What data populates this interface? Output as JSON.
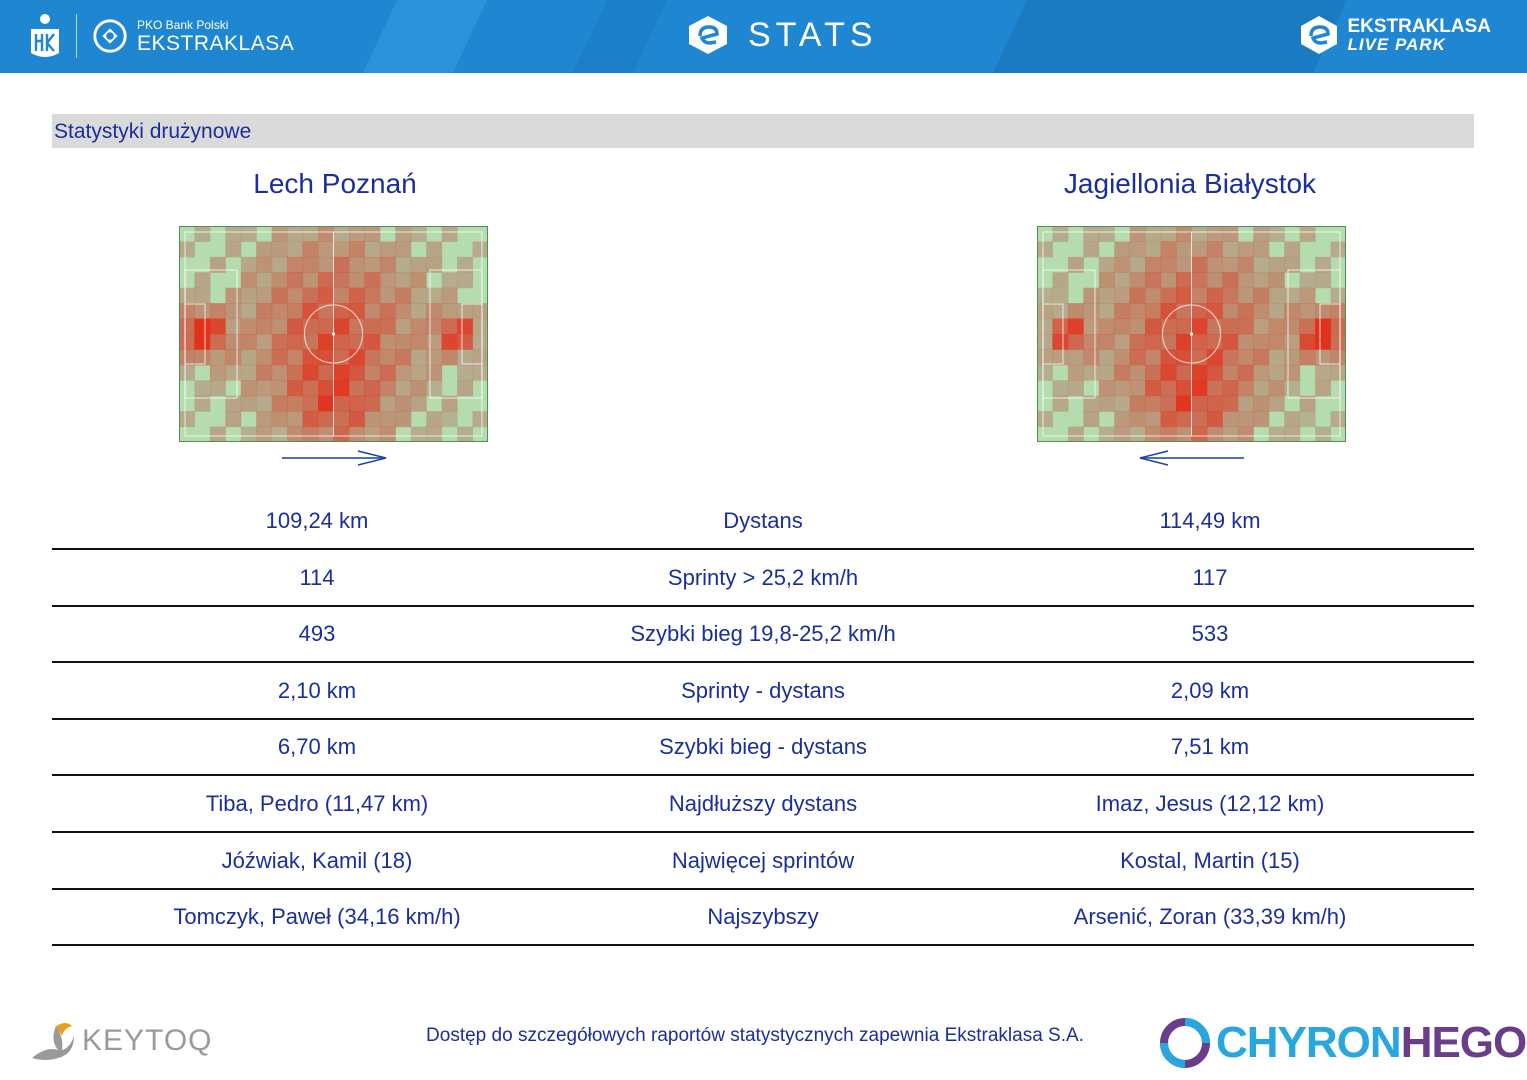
{
  "header": {
    "bank_small": "PKO Bank Polski",
    "bank_big": "EKSTRAKLASA",
    "title": "STATS",
    "right_line1": "EKSTRAKLASA",
    "right_line2": "LIVE PARK",
    "header_color": "#1f86d1"
  },
  "section": {
    "title": "Statystyki drużynowe"
  },
  "teams": {
    "home": {
      "name": "Lech Poznań",
      "attack_direction": "right"
    },
    "away": {
      "name": "Jagiellonia Białystok",
      "attack_direction": "left"
    }
  },
  "stats": [
    {
      "label": "Dystans",
      "home": "109,24 km",
      "away": "114,49 km"
    },
    {
      "label": "Sprinty > 25,2 km/h",
      "home": "114",
      "away": "117"
    },
    {
      "label": "Szybki bieg 19,8-25,2 km/h",
      "home": "493",
      "away": "533"
    },
    {
      "label": "Sprinty - dystans",
      "home": "2,10 km",
      "away": "2,09 km"
    },
    {
      "label": "Szybki bieg - dystans",
      "home": "6,70 km",
      "away": "7,51 km"
    },
    {
      "label": "Najdłuższy dystans",
      "home": "Tiba, Pedro (11,47 km)",
      "away": "Imaz, Jesus (12,12 km)"
    },
    {
      "label": "Najwięcej sprintów",
      "home": "Jóźwiak, Kamil (18)",
      "away": "Kostal, Martin (15)"
    },
    {
      "label": "Najszybszy",
      "home": "Tomczyk, Paweł (34,16 km/h)",
      "away": "Arsenić, Zoran (33,39 km/h)"
    }
  ],
  "footer": {
    "note": "Dostęp do szczegółowych raportów statystycznych zapewnia Ekstraklasa S.A.",
    "left_brand": "KEYTOQ",
    "right_brand_part1": "CHYRON",
    "right_brand_part2": "HEGO"
  }
}
